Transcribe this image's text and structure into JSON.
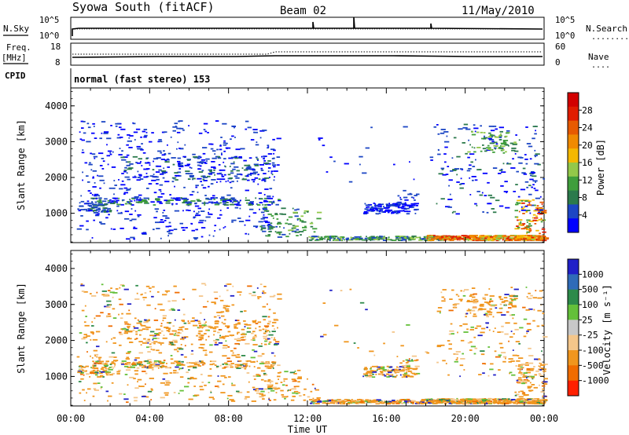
{
  "header": {
    "title": "Syowa South (fitACF)",
    "beam": "Beam 02",
    "date": "11/May/2010"
  },
  "top_panels": {
    "nsky_label": "N.Sky",
    "nsearch_label": "N.Search",
    "nsearch_legend": "........",
    "freq_label": "Freq.",
    "freq_unit": "[MHz]",
    "nave_label": "Nave",
    "nave_legend": "....",
    "cpid_label": "CPID",
    "cpid_text": "normal (fast stereo) 153",
    "noise_ticks_left": [
      "10^5",
      "10^0"
    ],
    "noise_ticks_right": [
      "10^5",
      "10^0"
    ],
    "freq_ticks": [
      "18",
      "8"
    ],
    "nave_ticks": [
      "60",
      "0"
    ]
  },
  "chart_data": [
    {
      "type": "heatmap",
      "title": "",
      "ylabel": "Slant Range [km]",
      "ylim": [
        180,
        4500
      ],
      "yticks": [
        "1000",
        "2000",
        "3000",
        "4000"
      ],
      "xlim_hours": [
        0,
        24
      ],
      "xticks": [
        "00:00",
        "04:00",
        "08:00",
        "12:00",
        "16:00",
        "20:00",
        "00:00"
      ],
      "colorbar": {
        "label": "Power [dB]",
        "tick_labels": [
          "4",
          "8",
          "12",
          "16",
          "20",
          "24",
          "28"
        ],
        "colors": [
          "#0000ff",
          "#1c46c4",
          "#2c7a4c",
          "#3f9e3c",
          "#93c84a",
          "#f4b800",
          "#f08a00",
          "#e75a00",
          "#e01c00",
          "#d20000"
        ]
      }
    },
    {
      "type": "heatmap",
      "title": "",
      "ylabel": "Slant Range [km]",
      "ylim": [
        180,
        4500
      ],
      "yticks": [
        "1000",
        "2000",
        "3000",
        "4000"
      ],
      "xlabel": "Time UT",
      "xlim_hours": [
        0,
        24
      ],
      "xticks": [
        "00:00",
        "04:00",
        "08:00",
        "12:00",
        "16:00",
        "20:00",
        "00:00"
      ],
      "colorbar": {
        "label": "Velocity [m s⁻¹]",
        "tick_labels": [
          "1000",
          "500",
          "100",
          "25",
          "-25",
          "-100",
          "-500",
          "-1000"
        ],
        "colors": [
          "#2020c8",
          "#2f6bb8",
          "#2d8a4a",
          "#64c03a",
          "#c8c8c8",
          "#f4c68a",
          "#f0961e",
          "#f06c00",
          "#ff2000"
        ]
      }
    }
  ]
}
